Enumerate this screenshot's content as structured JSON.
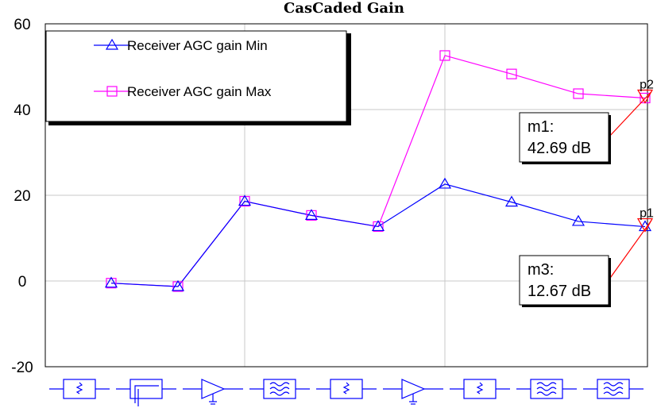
{
  "chart_data": {
    "type": "line",
    "title": "CasCaded Gain",
    "ylim": [
      -20,
      60
    ],
    "yticks": [
      "60",
      "40",
      "20",
      "0",
      "-20"
    ],
    "ytick_values": [
      60,
      40,
      20,
      0,
      -20
    ],
    "x": [
      0,
      1,
      2,
      3,
      4,
      5,
      6,
      7,
      8
    ],
    "grid": true,
    "legend_position": "top-left",
    "series": [
      {
        "name": "Receiver AGC gain Min",
        "color": "#0000ff",
        "marker": "triangle",
        "values": [
          -0.5,
          -1.3,
          18.6,
          15.3,
          12.7,
          22.6,
          18.4,
          13.9,
          12.67
        ]
      },
      {
        "name": "Receiver AGC gain Max",
        "color": "#ff00ff",
        "marker": "square",
        "values": [
          -0.5,
          -1.3,
          18.6,
          15.3,
          12.7,
          52.6,
          48.3,
          43.7,
          42.69
        ]
      }
    ],
    "markers": [
      {
        "point_label": "p2",
        "box_name": "m1:",
        "box_value": "42.69 dB",
        "series": 1,
        "x": 8,
        "y": 42.69
      },
      {
        "point_label": "p1",
        "box_name": "m3:",
        "box_value": "12.67 dB",
        "series": 0,
        "x": 8,
        "y": 12.67
      }
    ],
    "components": [
      "attenuator",
      "filter",
      "amplifier",
      "bandpass-filter",
      "attenuator",
      "amplifier",
      "attenuator",
      "bandpass-filter",
      "bandpass-filter"
    ],
    "component_color": "#0000ff"
  }
}
